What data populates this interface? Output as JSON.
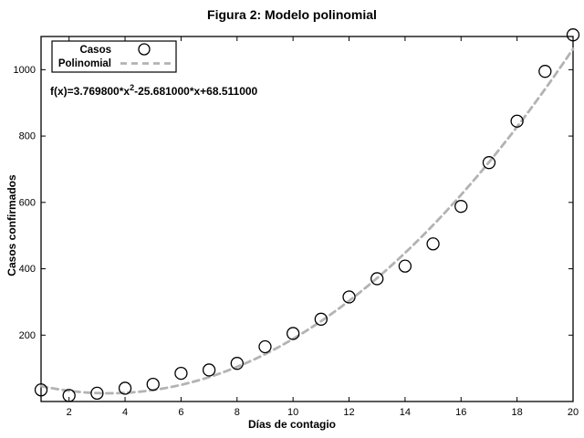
{
  "colors": {
    "axis": "#000000",
    "marker": "#000000",
    "fit_line": "#b3b3b3",
    "background": "#ffffff"
  },
  "chart_data": {
    "type": "scatter",
    "title": "Figura 2: Modelo polinomial",
    "xlabel": "Días de contagio",
    "ylabel": "Casos confirmados",
    "xlim": [
      1,
      20
    ],
    "ylim": [
      0,
      1100
    ],
    "xticks": [
      2,
      4,
      6,
      8,
      10,
      12,
      14,
      16,
      18,
      20
    ],
    "yticks": [
      200,
      400,
      600,
      800,
      1000
    ],
    "grid": false,
    "legend_position": "top-left",
    "series": [
      {
        "name": "Casos",
        "type": "scatter",
        "marker": "circle",
        "color": "#000000",
        "x": [
          1,
          2,
          3,
          4,
          5,
          6,
          7,
          8,
          9,
          10,
          11,
          12,
          13,
          14,
          15,
          16,
          17,
          18,
          19,
          20
        ],
        "y": [
          35,
          18,
          25,
          40,
          52,
          85,
          95,
          115,
          165,
          205,
          248,
          315,
          370,
          408,
          475,
          588,
          720,
          845,
          995,
          1105
        ]
      },
      {
        "name": "Polinomial",
        "type": "line",
        "style": "dashed",
        "color": "#b3b3b3",
        "polynomial": {
          "a": 3.7698,
          "b": -25.681,
          "c": 68.511
        }
      }
    ],
    "annotation": {
      "prefix": "f(x)=3.769800*x",
      "sup": "2",
      "suffix": "-25.681000*x+68.511000"
    }
  }
}
